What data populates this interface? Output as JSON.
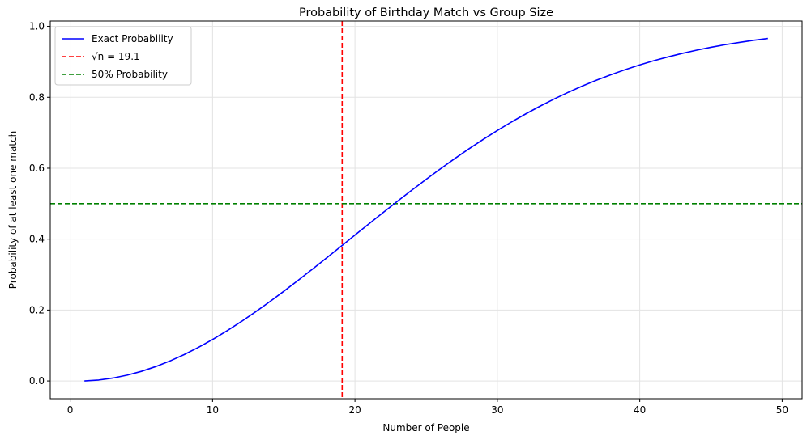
{
  "chart_data": {
    "type": "line",
    "title": "Probability of Birthday Match vs Group Size",
    "xlabel": "Number of People",
    "ylabel": "Probability of at least one match",
    "xlim": [
      -1.4,
      51.4
    ],
    "ylim": [
      -0.05,
      1.015
    ],
    "xticks": [
      0,
      10,
      20,
      30,
      40,
      50
    ],
    "yticks": [
      0.0,
      0.2,
      0.4,
      0.6,
      0.8,
      1.0
    ],
    "xtick_labels": [
      "0",
      "10",
      "20",
      "30",
      "40",
      "50"
    ],
    "ytick_labels": [
      "0.0",
      "0.2",
      "0.4",
      "0.6",
      "0.8",
      "1.0"
    ],
    "grid": true,
    "legend_position": "top-left",
    "series": [
      {
        "name": "Exact Probability",
        "color": "#0000ff",
        "style": "solid",
        "x": [
          1,
          2,
          3,
          4,
          5,
          6,
          7,
          8,
          9,
          10,
          11,
          12,
          13,
          14,
          15,
          16,
          17,
          18,
          19,
          20,
          21,
          22,
          23,
          24,
          25,
          26,
          27,
          28,
          29,
          30,
          31,
          32,
          33,
          34,
          35,
          36,
          37,
          38,
          39,
          40,
          41,
          42,
          43,
          44,
          45,
          46,
          47,
          48,
          49
        ],
        "y": [
          0.0,
          0.0027,
          0.0082,
          0.0164,
          0.0271,
          0.0405,
          0.0562,
          0.0743,
          0.0946,
          0.1169,
          0.1411,
          0.167,
          0.1944,
          0.2231,
          0.2529,
          0.2836,
          0.315,
          0.3469,
          0.3791,
          0.4114,
          0.4437,
          0.4757,
          0.5073,
          0.5383,
          0.5687,
          0.5982,
          0.6269,
          0.6545,
          0.681,
          0.7063,
          0.7305,
          0.7533,
          0.775,
          0.7953,
          0.8144,
          0.8322,
          0.8487,
          0.864,
          0.8782,
          0.8912,
          0.9032,
          0.914,
          0.9239,
          0.9329,
          0.941,
          0.9483,
          0.9548,
          0.9606,
          0.9658
        ]
      }
    ],
    "reference_lines": [
      {
        "name": "√n = 19.1",
        "orientation": "vertical",
        "value": 19.1,
        "color": "#ff0000",
        "style": "dashed"
      },
      {
        "name": "50% Probability",
        "orientation": "horizontal",
        "value": 0.5,
        "color": "#008000",
        "style": "dashed"
      }
    ]
  }
}
